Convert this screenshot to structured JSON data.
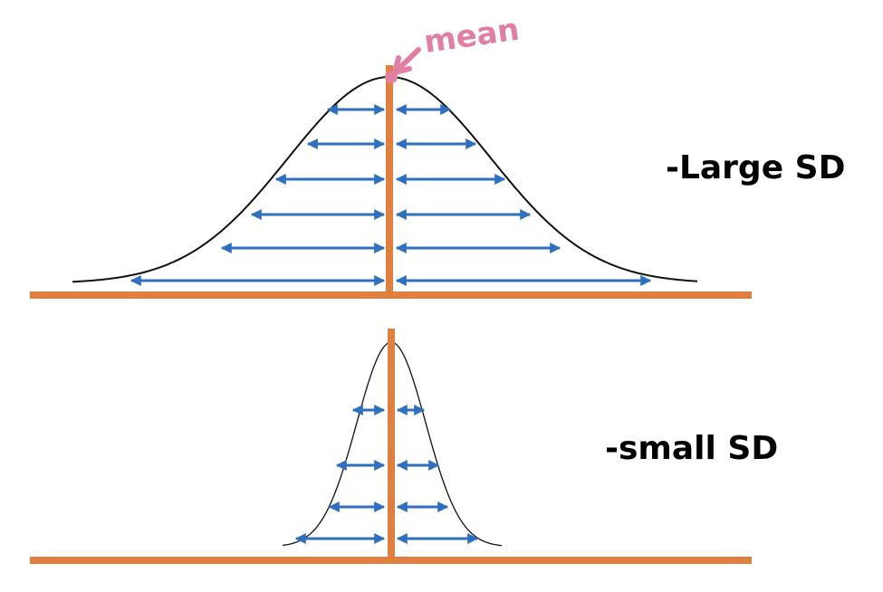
{
  "labels": {
    "mean": "mean",
    "large_sd": "-Large SD",
    "small_sd": "-small SD"
  },
  "colors": {
    "axis": "#e08040",
    "arrow": "#2f6fbf",
    "curve": "#111111",
    "mean_annotation": "#e07fa0",
    "text": "#000000"
  }
}
